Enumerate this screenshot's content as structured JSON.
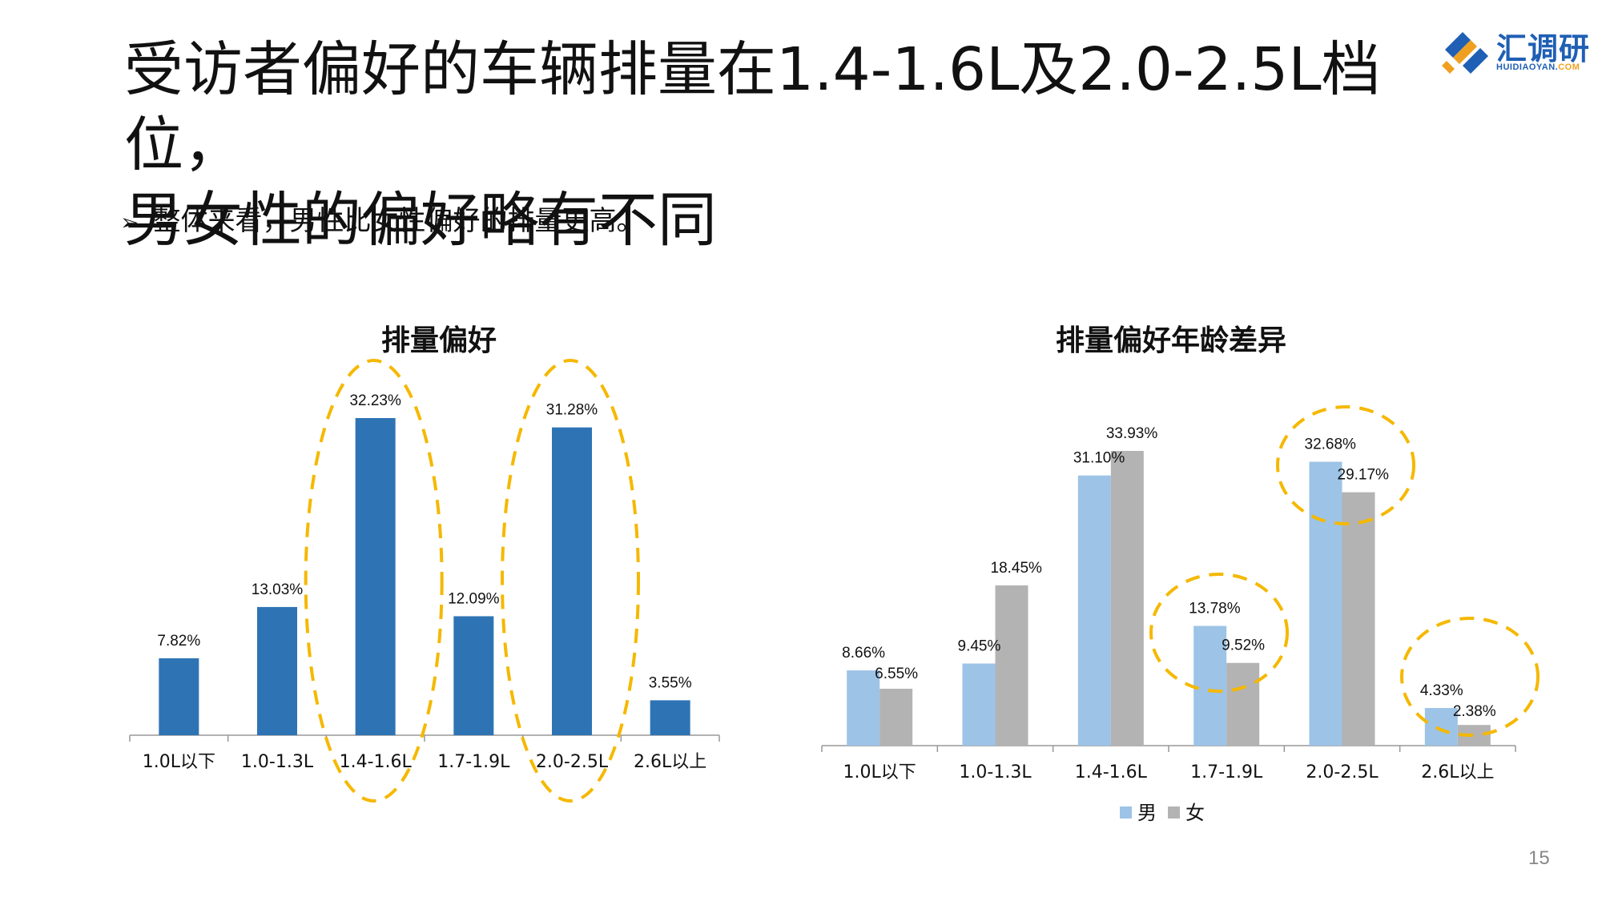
{
  "slide": {
    "title_line1": "受访者偏好的车辆排量在1.4-1.6L及2.0-2.5L档位，",
    "title_line2": "男女性的偏好略有不同",
    "bullet_marker": "➢",
    "bullet": "整体来看，男性比女性偏好的排量更高。",
    "page_number": "15"
  },
  "logo": {
    "name": "汇调研",
    "domain_main": "HUIDIAOYAN.",
    "domain_suffix": "COM"
  },
  "colors": {
    "bar_primary": "#2e74b5",
    "male": "#9dc3e6",
    "female": "#b3b3b3",
    "highlight": "#f5b800"
  },
  "chart_data": [
    {
      "type": "bar",
      "title": "排量偏好",
      "categories": [
        "1.0L以下",
        "1.0-1.3L",
        "1.4-1.6L",
        "1.7-1.9L",
        "2.0-2.5L",
        "2.6L以上"
      ],
      "values": [
        7.82,
        13.03,
        32.23,
        12.09,
        31.28,
        3.55
      ],
      "data_labels": [
        "7.82%",
        "13.03%",
        "32.23%",
        "12.09%",
        "31.28%",
        "3.55%"
      ],
      "unit": "%",
      "ylim": [
        0,
        35
      ],
      "grid": false,
      "highlighted_categories": [
        "1.4-1.6L",
        "2.0-2.5L"
      ]
    },
    {
      "type": "bar",
      "title": "排量偏好年龄差异",
      "categories": [
        "1.0L以下",
        "1.0-1.3L",
        "1.4-1.6L",
        "1.7-1.9L",
        "2.0-2.5L",
        "2.6L以上"
      ],
      "series": [
        {
          "name": "男",
          "values": [
            8.66,
            9.45,
            31.1,
            13.78,
            32.68,
            4.33
          ],
          "data_labels": [
            "8.66%",
            "9.45%",
            "31.10%",
            "13.78%",
            "32.68%",
            "4.33%"
          ]
        },
        {
          "name": "女",
          "values": [
            6.55,
            18.45,
            33.93,
            9.52,
            29.17,
            2.38
          ],
          "data_labels": [
            "6.55%",
            "18.45%",
            "33.93%",
            "9.52%",
            "29.17%",
            "2.38%"
          ]
        }
      ],
      "unit": "%",
      "ylim": [
        0,
        35
      ],
      "grid": false,
      "legend_position": "bottom",
      "highlighted_categories": [
        "1.7-1.9L",
        "2.0-2.5L",
        "2.6L以上"
      ]
    }
  ]
}
